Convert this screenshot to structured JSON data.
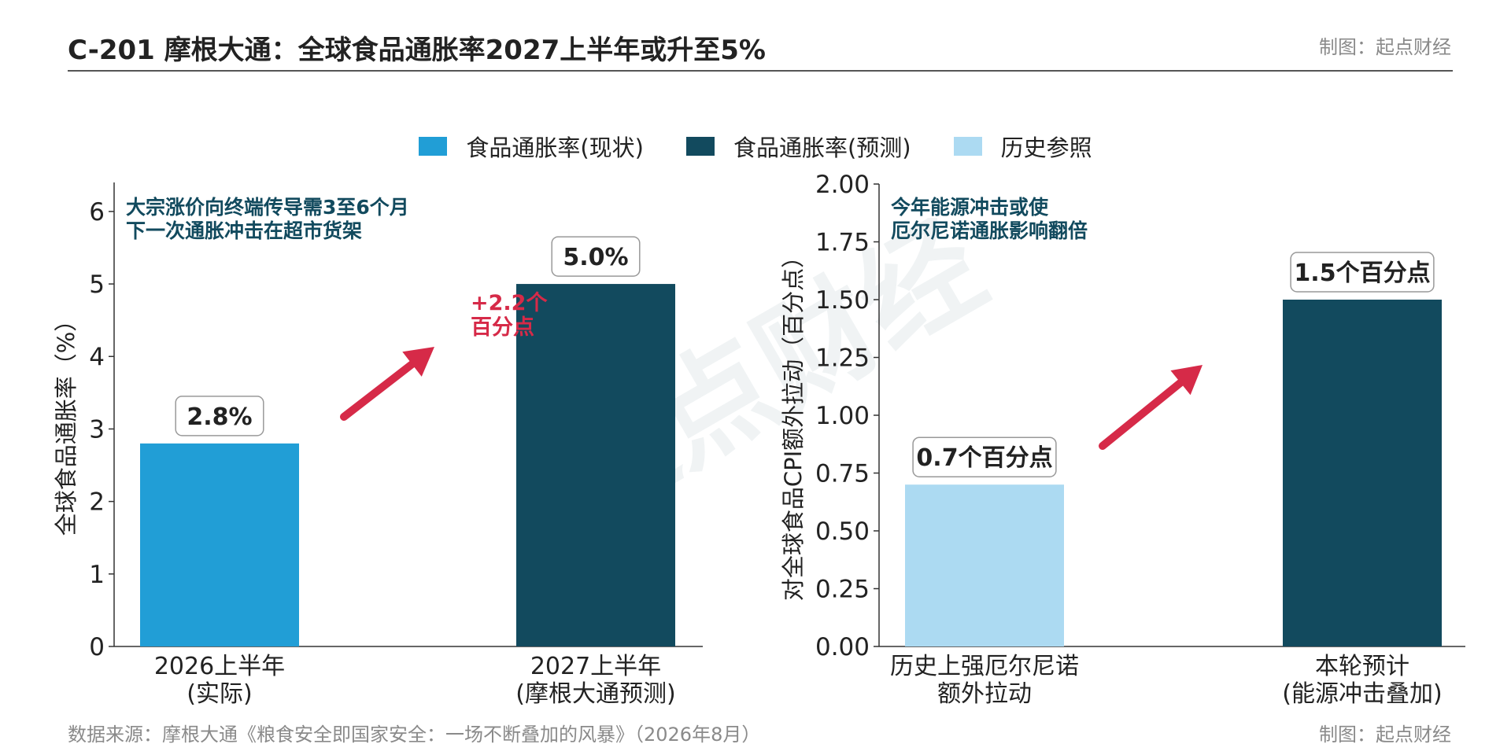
{
  "header": {
    "title": "C-201 摩根大通：全球食品通胀率2027上半年或升至5%",
    "credit": "制图：起点财经"
  },
  "footer": {
    "source": "数据来源：摩根大通《粮食安全即国家安全：一场不断叠加的风暴》（2026年8月）",
    "credit": "制图：起点财经"
  },
  "watermark": "起点财经",
  "legend": [
    {
      "label": "食品通胀率(现状)",
      "color": "#219ed6"
    },
    {
      "label": "食品通胀率(预测)",
      "color": "#124a5e"
    },
    {
      "label": "历史参照",
      "color": "#acdaf2"
    }
  ],
  "chart_data": [
    {
      "type": "bar",
      "categories": [
        "2026上半年\n(实际)",
        "2027上半年\n(摩根大通预测)"
      ],
      "values": [
        2.8,
        5.0
      ],
      "colors": [
        "#219ed6",
        "#124a5e"
      ],
      "data_labels": [
        "2.8%",
        "5.0%"
      ],
      "ylabel": "全球食品通胀率（%）",
      "ylim": [
        0,
        6.4
      ],
      "yticks": [
        0,
        1,
        2,
        3,
        4,
        5,
        6
      ],
      "annotation": [
        "大宗涨价向终端传导需3至6个月",
        "下一次通胀冲击在超市货架"
      ],
      "arrow_label": [
        "+2.2个",
        "百分点"
      ],
      "grid": false
    },
    {
      "type": "bar",
      "categories": [
        "历史上强厄尔尼诺\n额外拉动",
        "本轮预计\n(能源冲击叠加)"
      ],
      "values": [
        0.7,
        1.5
      ],
      "colors": [
        "#acdaf2",
        "#124a5e"
      ],
      "data_labels": [
        "0.7个百分点",
        "1.5个百分点"
      ],
      "ylabel": "对全球食品CPI额外拉动（百分点）",
      "ylim": [
        0,
        2.0
      ],
      "yticks": [
        "0.00",
        "0.25",
        "0.50",
        "0.75",
        "1.00",
        "1.25",
        "1.50",
        "1.75",
        "2.00"
      ],
      "annotation": [
        "今年能源冲击或使",
        "厄尔尼诺通胀影响翻倍"
      ],
      "grid": false
    }
  ]
}
